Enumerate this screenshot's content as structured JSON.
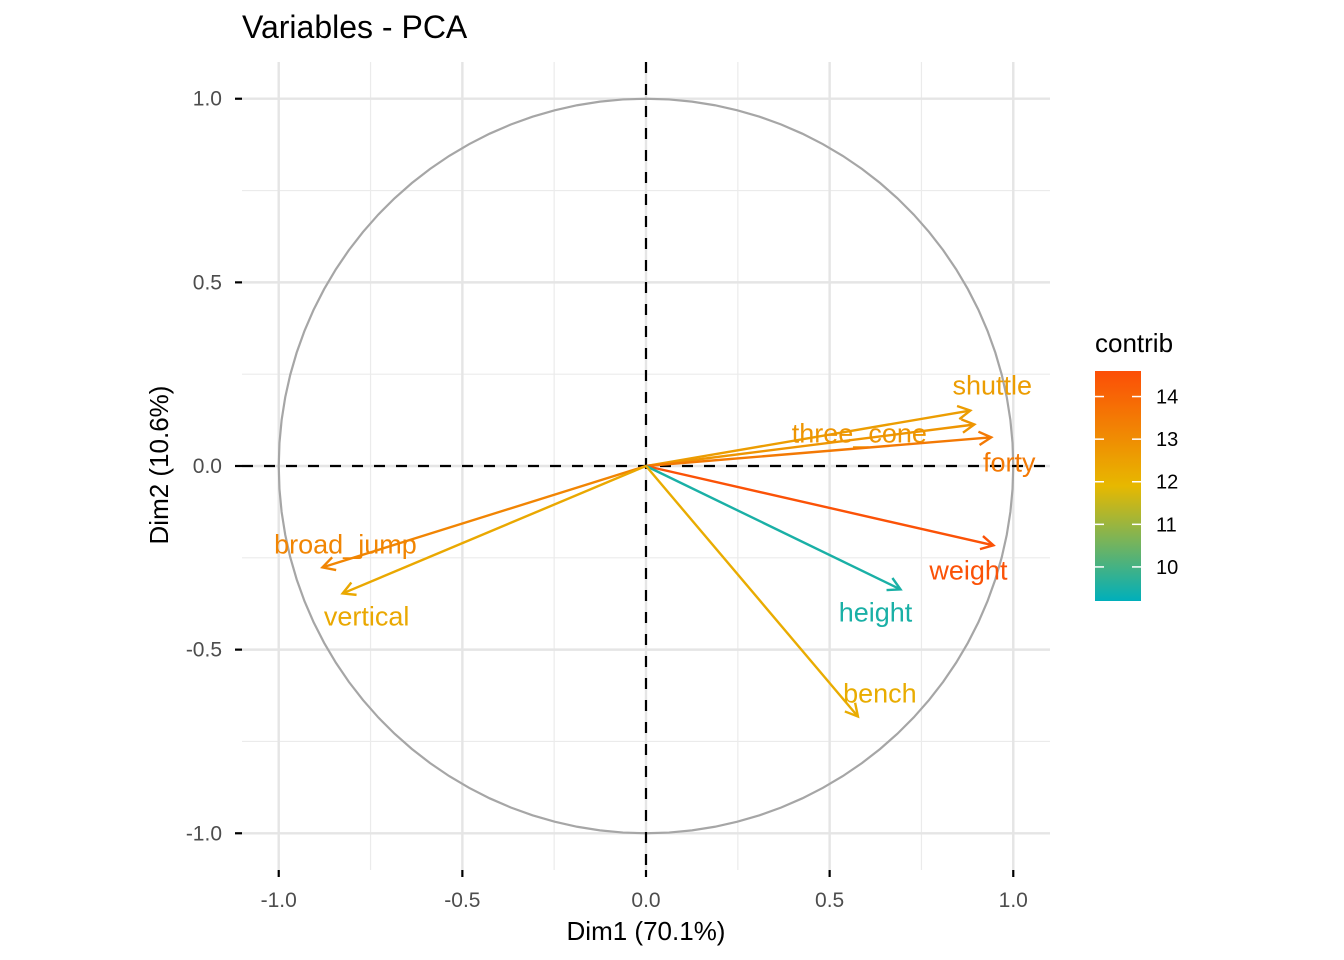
{
  "chart_data": {
    "type": "scatter",
    "subtype": "pca-variable-correlation-circle",
    "title": "Variables - PCA",
    "xlabel": "Dim1 (70.1%)",
    "ylabel": "Dim2 (10.6%)",
    "xlim": [
      -1.1,
      1.1
    ],
    "ylim": [
      -1.1,
      1.1
    ],
    "x_ticks": [
      -1.0,
      -0.5,
      0.0,
      0.5,
      1.0
    ],
    "y_ticks": [
      -1.0,
      -0.5,
      0.0,
      0.5,
      1.0
    ],
    "x_tick_labels": [
      "-1.0",
      "-0.5",
      "0.0",
      "0.5",
      "1.0"
    ],
    "y_tick_labels": [
      "-1.0",
      "-0.5",
      "0.0",
      "0.5",
      "1.0"
    ],
    "grid": true,
    "unit_circle": true,
    "reference_lines": [
      "x=0 dashed",
      "y=0 dashed"
    ],
    "color_variable": "contrib",
    "variables": [
      {
        "name": "shuttle",
        "x": 0.883,
        "y": 0.151,
        "contrib": 12.6
      },
      {
        "name": "three_cone",
        "x": 0.894,
        "y": 0.113,
        "contrib": 12.8
      },
      {
        "name": "forty",
        "x": 0.94,
        "y": 0.078,
        "contrib": 13.5
      },
      {
        "name": "weight",
        "x": 0.946,
        "y": -0.216,
        "contrib": 14.5
      },
      {
        "name": "height",
        "x": 0.693,
        "y": -0.336,
        "contrib": 9.5
      },
      {
        "name": "bench",
        "x": 0.577,
        "y": -0.682,
        "contrib": 12.2
      },
      {
        "name": "broad_jump",
        "x": -0.881,
        "y": -0.276,
        "contrib": 13.2
      },
      {
        "name": "vertical",
        "x": -0.826,
        "y": -0.347,
        "contrib": 12.3
      }
    ],
    "legend": {
      "title": "contrib",
      "placement": "right",
      "type": "colorbar",
      "range": [
        9.2,
        14.6
      ],
      "breaks": [
        14,
        13,
        12,
        11,
        10
      ],
      "break_labels": [
        "14",
        "13",
        "12",
        "11",
        "10"
      ],
      "gradient_colors": [
        "#00AFBB",
        "#E7B800",
        "#FC4E07"
      ]
    }
  }
}
